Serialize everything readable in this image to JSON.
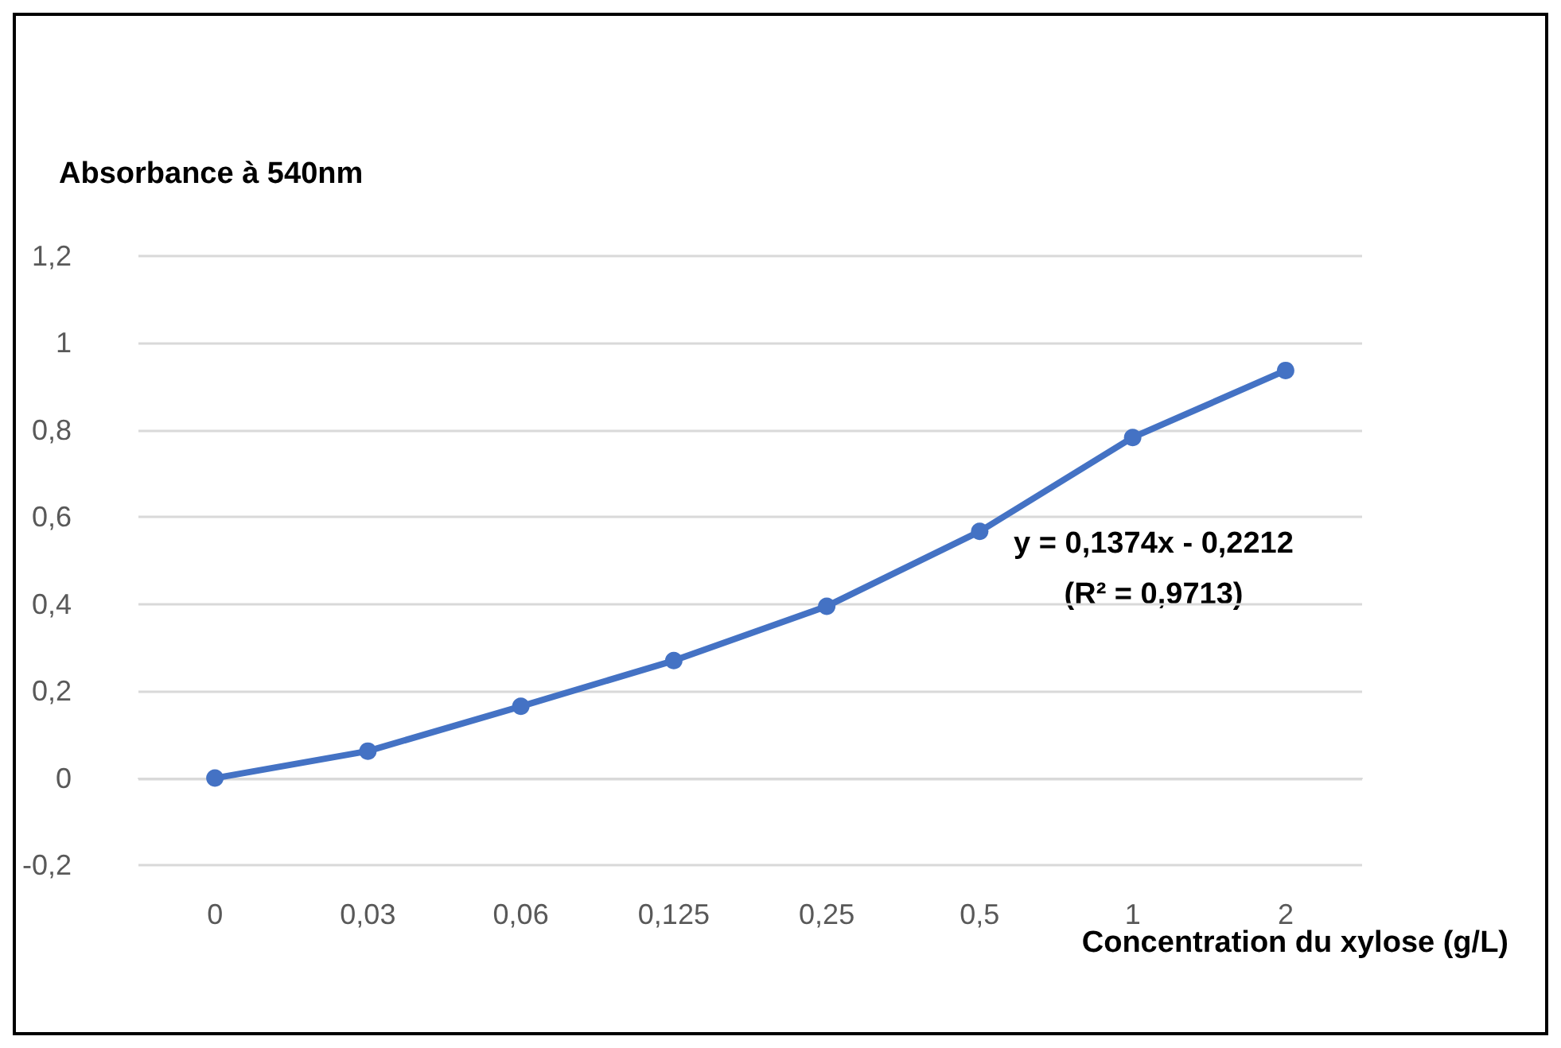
{
  "chart_data": {
    "type": "line",
    "ylabel": "Absorbance à 540nm",
    "xlabel": "Concentration du xylose (g/L)",
    "categories": [
      "0",
      "0,03",
      "0,06",
      "0,125",
      "0,25",
      "0,5",
      "1",
      "2"
    ],
    "series": [
      {
        "color": "#4472c4",
        "values": [
          0,
          0.062,
          0.165,
          0.27,
          0.395,
          0.567,
          0.783,
          0.937
        ]
      }
    ],
    "ylim": [
      -0.2,
      1.2
    ],
    "yticks": [
      {
        "value": -0.2,
        "label": "-0,2"
      },
      {
        "value": 0,
        "label": "0"
      },
      {
        "value": 0.2,
        "label": "0,2"
      },
      {
        "value": 0.4,
        "label": "0,4"
      },
      {
        "value": 0.6,
        "label": "0,6"
      },
      {
        "value": 0.8,
        "label": "0,8"
      },
      {
        "value": 1,
        "label": "1"
      },
      {
        "value": 1.2,
        "label": "1,2"
      }
    ],
    "grid": "y",
    "marker": "circle",
    "line_style": "solid",
    "annotations": [
      "y = 0,1374x - 0,2212",
      "(R² = 0,9713)"
    ]
  }
}
